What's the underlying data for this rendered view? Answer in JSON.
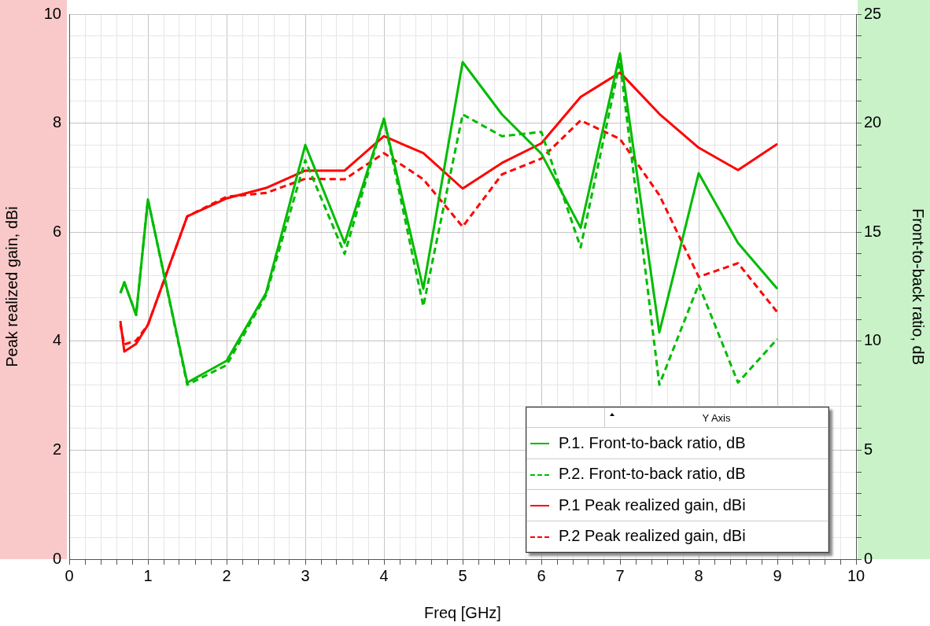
{
  "chart_data": {
    "type": "line",
    "xlabel": "Freq [GHz]",
    "ylabel": "Peak realized gain, dBi",
    "y2label": "Front-to-back ratio, dB",
    "legend_title": "Y Axis",
    "legend": "bottom right",
    "grid": true,
    "marker": "none",
    "xlim": [
      0,
      10
    ],
    "ylim": [
      0,
      10
    ],
    "y2lim": [
      0,
      25
    ],
    "xticks": [
      0,
      {
        "value": 0.2,
        "label": null
      },
      {
        "value": 0.4,
        "label": null
      },
      {
        "value": 0.6,
        "label": null
      },
      {
        "value": 0.8,
        "label": null
      },
      1,
      {
        "value": 1.2,
        "label": null
      },
      {
        "value": 1.4,
        "label": null
      },
      {
        "value": 1.6,
        "label": null
      },
      {
        "value": 1.8,
        "label": null
      },
      2,
      {
        "value": 2.2,
        "label": null
      },
      {
        "value": 2.4,
        "label": null
      },
      {
        "value": 2.6,
        "label": null
      },
      {
        "value": 2.8,
        "label": null
      },
      3,
      {
        "value": 3.2,
        "label": null
      },
      {
        "value": 3.4,
        "label": null
      },
      {
        "value": 3.6,
        "label": null
      },
      {
        "value": 3.8,
        "label": null
      },
      4,
      {
        "value": 4.2,
        "label": null
      },
      {
        "value": 4.4,
        "label": null
      },
      {
        "value": 4.6,
        "label": null
      },
      {
        "value": 4.8,
        "label": null
      },
      5,
      {
        "value": 5.2,
        "label": null
      },
      {
        "value": 5.4,
        "label": null
      },
      {
        "value": 5.6,
        "label": null
      },
      {
        "value": 5.8,
        "label": null
      },
      6,
      {
        "value": 6.2,
        "label": null
      },
      {
        "value": 6.4,
        "label": null
      },
      {
        "value": 6.6,
        "label": null
      },
      {
        "value": 6.8,
        "label": null
      },
      7,
      {
        "value": 7.2,
        "label": null
      },
      {
        "value": 7.4,
        "label": null
      },
      {
        "value": 7.6,
        "label": null
      },
      {
        "value": 7.8,
        "label": null
      },
      8,
      {
        "value": 8.2,
        "label": null
      },
      {
        "value": 8.4,
        "label": null
      },
      {
        "value": 8.6,
        "label": null
      },
      {
        "value": 8.8,
        "label": null
      },
      9,
      {
        "value": 9.2,
        "label": null
      },
      {
        "value": 9.4,
        "label": null
      },
      {
        "value": 9.6,
        "label": null
      },
      {
        "value": 9.8,
        "label": null
      },
      10
    ],
    "yticks": [
      0,
      2,
      4,
      6,
      8,
      10
    ],
    "y2ticks": [
      0,
      {
        "value": 1,
        "label": null
      },
      {
        "value": 2,
        "label": null
      },
      {
        "value": 3,
        "label": null
      },
      {
        "value": 4,
        "label": null
      },
      5,
      {
        "value": 6,
        "label": null
      },
      {
        "value": 7,
        "label": null
      },
      {
        "value": 8,
        "label": null
      },
      {
        "value": 9,
        "label": null
      },
      10,
      {
        "value": 11,
        "label": null
      },
      {
        "value": 12,
        "label": null
      },
      {
        "value": 13,
        "label": null
      },
      {
        "value": 14,
        "label": null
      },
      15,
      {
        "value": 16,
        "label": null
      },
      {
        "value": 17,
        "label": null
      },
      {
        "value": 18,
        "label": null
      },
      {
        "value": 19,
        "label": null
      },
      20,
      {
        "value": 21,
        "label": null
      },
      {
        "value": 22,
        "label": null
      },
      {
        "value": 23,
        "label": null
      },
      {
        "value": 24,
        "label": null
      },
      25
    ],
    "x": [
      0.65,
      0.7,
      0.85,
      1,
      1.5,
      2,
      2.5,
      3,
      3.5,
      4,
      4.5,
      5,
      5.5,
      6,
      6.5,
      7,
      7.5,
      8,
      8.5,
      9
    ],
    "series": [
      {
        "name": "P.1. Front-to-back ratio, dB",
        "color": "#00bb00",
        "axis": "y2",
        "line_style": "solid",
        "values": [
          12.2,
          12.7,
          11.2,
          16.5,
          8.1,
          9.1,
          12.2,
          19.0,
          14.5,
          20.2,
          12.4,
          22.8,
          20.4,
          18.6,
          15.2,
          23.2,
          10.4,
          17.7,
          14.5,
          12.4
        ]
      },
      {
        "name": "P.2. Front-to-back ratio, dB",
        "color": "#00bb00",
        "axis": "y2",
        "line_style": "dashed",
        "values": [
          12.2,
          12.7,
          11.2,
          16.5,
          8.0,
          8.9,
          12.1,
          18.3,
          14.0,
          20.2,
          11.6,
          20.4,
          19.4,
          19.6,
          14.3,
          22.8,
          8.0,
          12.6,
          8.1,
          10.1
        ]
      },
      {
        "name": "P.1 Peak realized gain, dBi",
        "color": "#ff0000",
        "axis": "y",
        "line_style": "solid",
        "values": [
          4.37,
          3.81,
          3.95,
          4.3,
          6.29,
          6.62,
          6.81,
          7.13,
          7.13,
          7.76,
          7.45,
          6.8,
          7.27,
          7.63,
          8.48,
          8.93,
          8.17,
          7.55,
          7.14,
          7.62
        ]
      },
      {
        "name": "P.2 Peak realized gain, dBi",
        "color": "#ff0000",
        "axis": "y",
        "line_style": "dashed",
        "values": [
          4.3,
          3.94,
          4.01,
          4.3,
          6.29,
          6.65,
          6.72,
          6.98,
          6.97,
          7.45,
          6.97,
          6.1,
          7.06,
          7.35,
          8.05,
          7.71,
          6.68,
          5.18,
          5.43,
          4.53
        ]
      }
    ]
  }
}
